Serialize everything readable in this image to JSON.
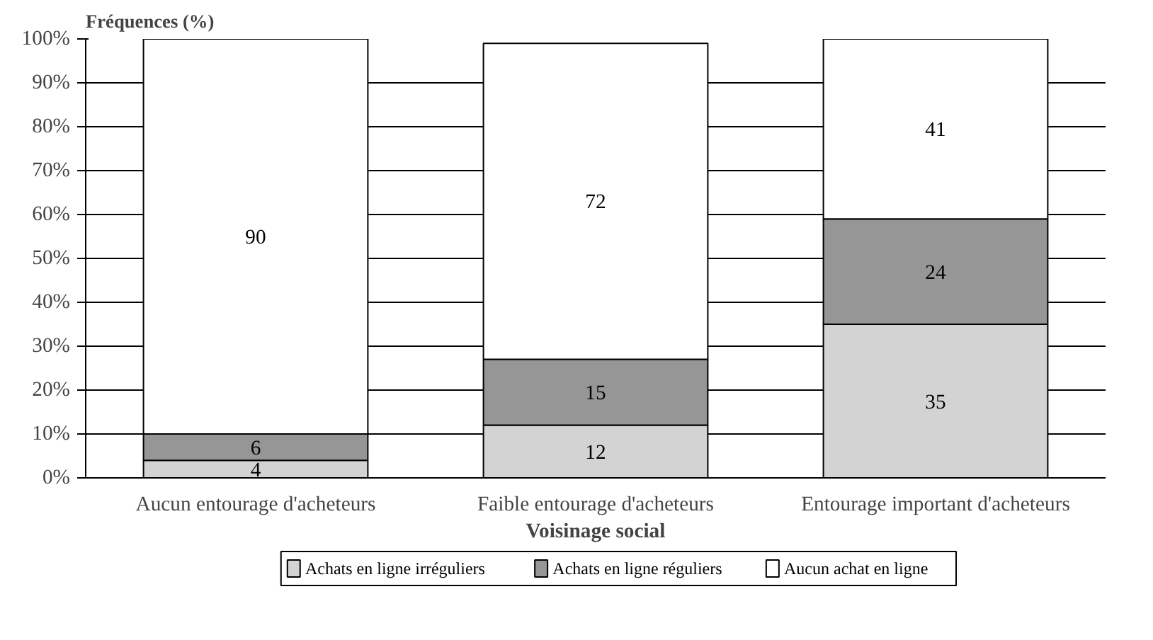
{
  "chart_data": {
    "type": "bar",
    "stacked": true,
    "ylabel": "Fréquences (%)",
    "xlabel": "Voisinage social",
    "categories": [
      "Aucun entourage d'acheteurs",
      "Faible entourage d'acheteurs",
      "Entourage important d'acheteurs"
    ],
    "series": [
      {
        "name": "Achats en ligne irréguliers",
        "color": "#d3d3d3",
        "values": [
          4,
          12,
          35
        ]
      },
      {
        "name": "Achats en ligne réguliers",
        "color": "#969696",
        "values": [
          6,
          15,
          24
        ]
      },
      {
        "name": "Aucun achat en ligne",
        "color": "#ffffff",
        "values": [
          90,
          72,
          41
        ]
      }
    ],
    "ylim": [
      0,
      100
    ],
    "yticks": [
      {
        "value": 0,
        "label": "0%"
      },
      {
        "value": 10,
        "label": "10%"
      },
      {
        "value": 20,
        "label": "20%"
      },
      {
        "value": 30,
        "label": "30%"
      },
      {
        "value": 40,
        "label": "40%"
      },
      {
        "value": 50,
        "label": "50%"
      },
      {
        "value": 60,
        "label": "60%"
      },
      {
        "value": 70,
        "label": "70%"
      },
      {
        "value": 80,
        "label": "80%"
      },
      {
        "value": 90,
        "label": "90%"
      },
      {
        "value": 100,
        "label": "100%"
      }
    ],
    "grid": "y",
    "legend": "bottom",
    "data_labels": true
  }
}
